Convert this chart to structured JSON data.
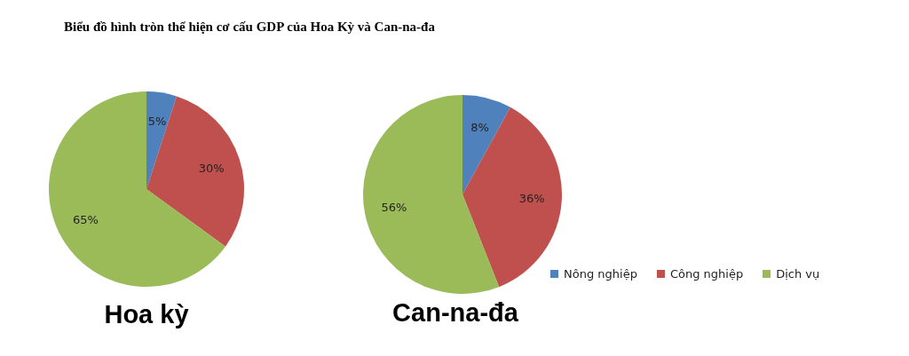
{
  "chart_data": [
    {
      "type": "pie",
      "title": "Biểu đồ hình tròn thể hiện cơ cấu GDP của Hoa Kỳ và Can-na-đa",
      "xlabel": "Hoa kỳ",
      "categories": [
        null,
        null,
        null
      ],
      "values": [
        5,
        30,
        65
      ],
      "colors": [
        "#4f81bd",
        "#c0504d",
        "#9bbb59"
      ],
      "value_labels": [
        "5%",
        "30%",
        "65%"
      ]
    },
    {
      "type": "pie",
      "xlabel": "Can-na-đa",
      "categories": [
        "Nông nghiệp",
        "Công nghiệp",
        "Dịch vụ"
      ],
      "values": [
        8,
        36,
        56
      ],
      "colors": [
        "#4f81bd",
        "#c0504d",
        "#9bbb59"
      ],
      "value_labels": [
        "8%",
        "36%",
        "56%"
      ],
      "legend": "bottom right"
    }
  ]
}
